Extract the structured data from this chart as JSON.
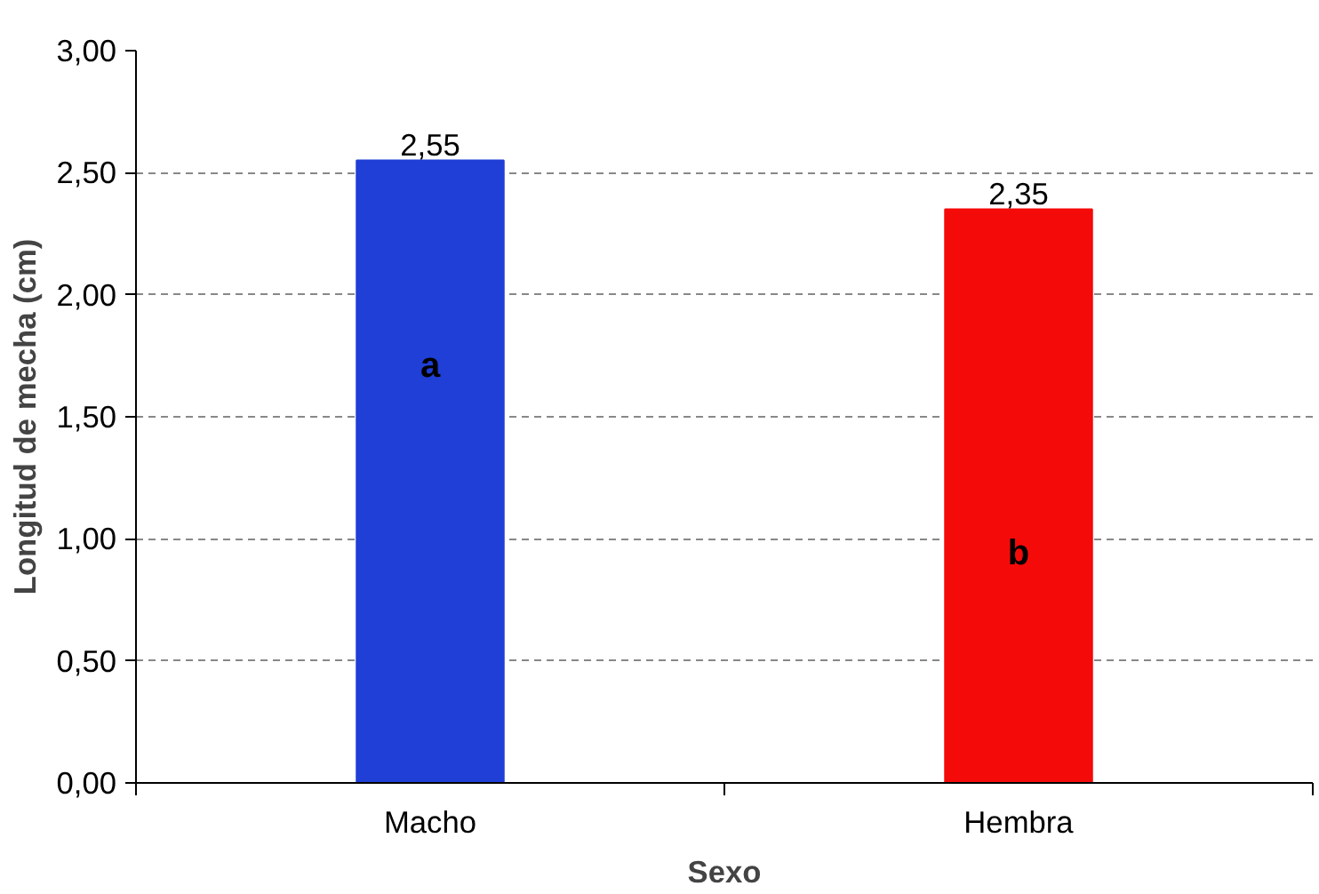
{
  "chart_data": {
    "type": "bar",
    "xlabel": "Sexo",
    "ylabel": "Longitud de mecha (cm)",
    "categories": [
      "Macho",
      "Hembra"
    ],
    "values": [
      2.55,
      2.35
    ],
    "colors": [
      "#1f3fd6",
      "#f50a0a"
    ],
    "value_labels": [
      "2,55",
      "2,35"
    ],
    "annotations": [
      "a",
      "b"
    ],
    "ylim": [
      0,
      3
    ],
    "yticks": [
      {
        "value": 0,
        "label": "0,00"
      },
      {
        "value": 0.5,
        "label": "0,50"
      },
      {
        "value": 1,
        "label": "1,00"
      },
      {
        "value": 1.5,
        "label": "1,50"
      },
      {
        "value": 2,
        "label": "2,00"
      },
      {
        "value": 2.5,
        "label": "2,50"
      },
      {
        "value": 3,
        "label": "3,00"
      }
    ],
    "grid": "y"
  }
}
